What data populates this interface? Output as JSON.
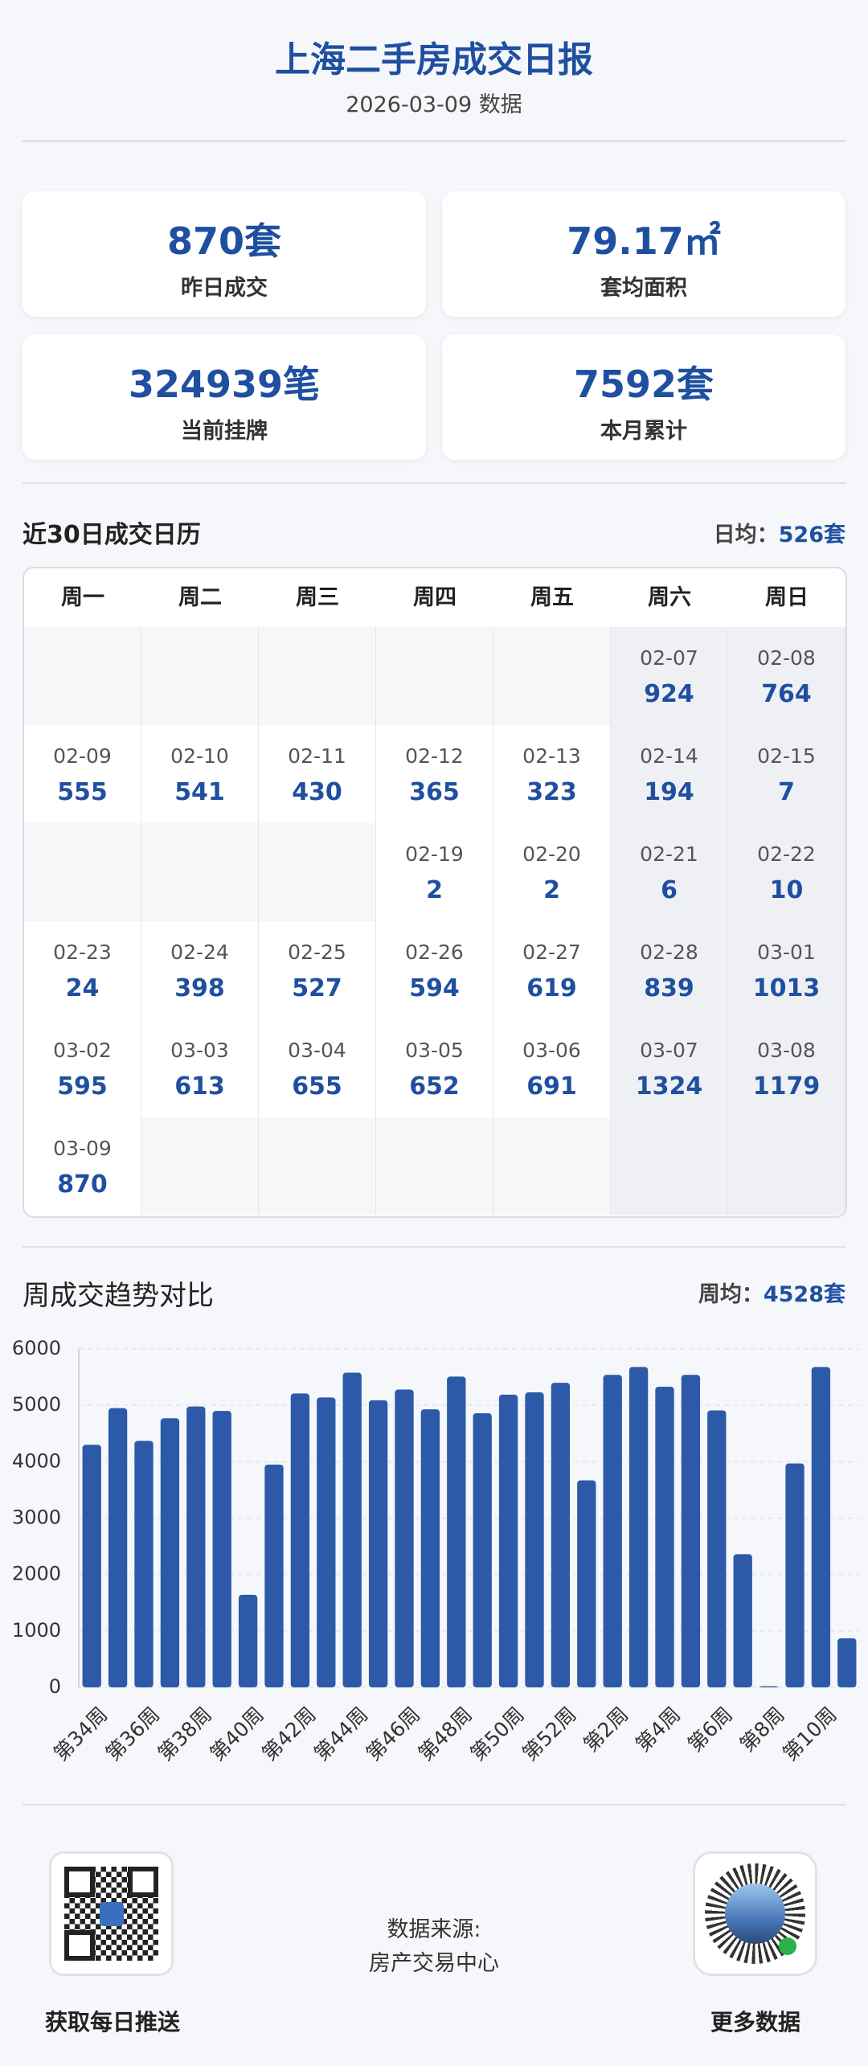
{
  "header": {
    "title": "上海二手房成交日报",
    "subtitle": "2026-03-09 数据"
  },
  "stats": [
    {
      "value": "870套",
      "label": "昨日成交"
    },
    {
      "value": "79.17㎡",
      "label": "套均面积"
    },
    {
      "value": "324939笔",
      "label": "当前挂牌"
    },
    {
      "value": "7592套",
      "label": "本月累计"
    }
  ],
  "calendar": {
    "title": "近30日成交日历",
    "avg_label": "日均：",
    "avg_value": "526套",
    "weekdays": [
      "周一",
      "周二",
      "周三",
      "周四",
      "周五",
      "周六",
      "周日"
    ],
    "rows": [
      [
        null,
        null,
        null,
        null,
        null,
        {
          "date": "02-07",
          "value": 924
        },
        {
          "date": "02-08",
          "value": 764
        }
      ],
      [
        {
          "date": "02-09",
          "value": 555
        },
        {
          "date": "02-10",
          "value": 541
        },
        {
          "date": "02-11",
          "value": 430
        },
        {
          "date": "02-12",
          "value": 365
        },
        {
          "date": "02-13",
          "value": 323
        },
        {
          "date": "02-14",
          "value": 194
        },
        {
          "date": "02-15",
          "value": 7
        }
      ],
      [
        null,
        null,
        null,
        {
          "date": "02-19",
          "value": 2
        },
        {
          "date": "02-20",
          "value": 2
        },
        {
          "date": "02-21",
          "value": 6
        },
        {
          "date": "02-22",
          "value": 10
        }
      ],
      [
        {
          "date": "02-23",
          "value": 24
        },
        {
          "date": "02-24",
          "value": 398
        },
        {
          "date": "02-25",
          "value": 527
        },
        {
          "date": "02-26",
          "value": 594
        },
        {
          "date": "02-27",
          "value": 619
        },
        {
          "date": "02-28",
          "value": 839
        },
        {
          "date": "03-01",
          "value": 1013
        }
      ],
      [
        {
          "date": "03-02",
          "value": 595
        },
        {
          "date": "03-03",
          "value": 613
        },
        {
          "date": "03-04",
          "value": 655
        },
        {
          "date": "03-05",
          "value": 652
        },
        {
          "date": "03-06",
          "value": 691
        },
        {
          "date": "03-07",
          "value": 1324
        },
        {
          "date": "03-08",
          "value": 1179
        }
      ],
      [
        {
          "date": "03-09",
          "value": 870
        },
        null,
        null,
        null,
        null,
        null,
        null
      ]
    ]
  },
  "weekly": {
    "title": "周成交趋势对比",
    "avg_label": "周均：",
    "avg_value": "4528套"
  },
  "chart_data": {
    "type": "bar",
    "categories": [
      "第34周",
      null,
      "第36周",
      null,
      "第38周",
      null,
      "第40周",
      null,
      "第42周",
      null,
      "第44周",
      null,
      "第46周",
      null,
      "第48周",
      null,
      "第50周",
      null,
      "第52周",
      null,
      "第2周",
      null,
      "第4周",
      null,
      "第6周",
      null,
      "第8周",
      null,
      "第10周",
      null
    ],
    "values": [
      4300,
      4950,
      4370,
      4770,
      4980,
      4900,
      1640,
      3950,
      5210,
      5140,
      5580,
      5090,
      5280,
      4930,
      5510,
      4860,
      5190,
      5230,
      5400,
      3670,
      5540,
      5680,
      5330,
      5540,
      4910,
      2360,
      20,
      3970,
      5680,
      870
    ],
    "color": "#2c5aa8",
    "ylim": [
      0,
      6000
    ],
    "yticks": [
      0,
      1000,
      2000,
      3000,
      4000,
      5000,
      6000
    ],
    "grid": true
  },
  "footer": {
    "left_label": "获取每日推送",
    "source_title": "数据来源:",
    "source_name": "房产交易中心",
    "right_label": "更多数据"
  }
}
